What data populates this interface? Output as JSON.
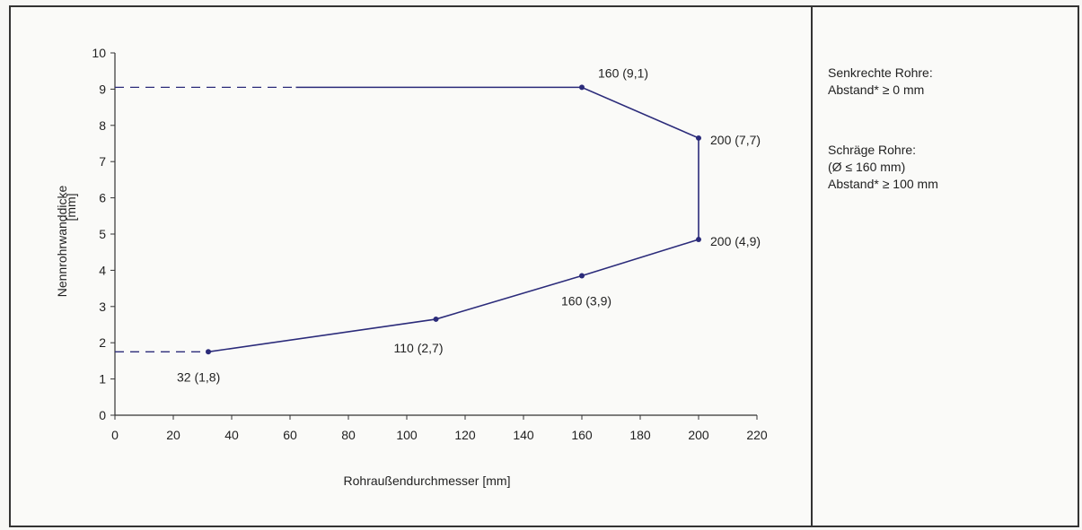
{
  "chart_data": {
    "type": "line",
    "xlabel": "Rohraußendurchmesser [mm]",
    "ylabel_line1": "Nennrohrwanddicke",
    "ylabel_line2": "[mm]",
    "xlim": [
      0,
      220
    ],
    "ylim": [
      0,
      10
    ],
    "xticks": [
      0,
      20,
      40,
      60,
      80,
      100,
      120,
      140,
      160,
      180,
      200,
      220
    ],
    "yticks": [
      0,
      1,
      2,
      3,
      4,
      5,
      6,
      7,
      8,
      9,
      10
    ],
    "grid": false,
    "line_color": "#2b2b7a",
    "series": [
      {
        "points": [
          {
            "x": 32,
            "y": 1.75,
            "label": "32 (1,8)"
          },
          {
            "x": 110,
            "y": 2.65,
            "label": "110 (2,7)"
          },
          {
            "x": 160,
            "y": 3.85,
            "label": "160 (3,9)"
          },
          {
            "x": 200,
            "y": 4.85,
            "label": "200 (4,9)"
          },
          {
            "x": 200,
            "y": 7.65,
            "label": "200 (7,7)"
          },
          {
            "x": 160,
            "y": 9.05,
            "label": "160 (9,1)"
          },
          {
            "x": 62,
            "y": 9.05,
            "label": ""
          }
        ]
      }
    ],
    "dashed_extensions": [
      {
        "from": {
          "x": 0,
          "y": 1.75
        },
        "to": {
          "x": 32,
          "y": 1.75
        }
      },
      {
        "from": {
          "x": 0,
          "y": 9.05
        },
        "to": {
          "x": 62,
          "y": 9.05
        }
      }
    ]
  },
  "side_panel": {
    "block1_line1": "Senkrechte Rohre:",
    "block1_line2": "Abstand* ≥ 0 mm",
    "block2_line1": "Schräge Rohre:",
    "block2_line2": "(Ø ≤ 160 mm)",
    "block2_line3": "Abstand* ≥ 100 mm"
  }
}
